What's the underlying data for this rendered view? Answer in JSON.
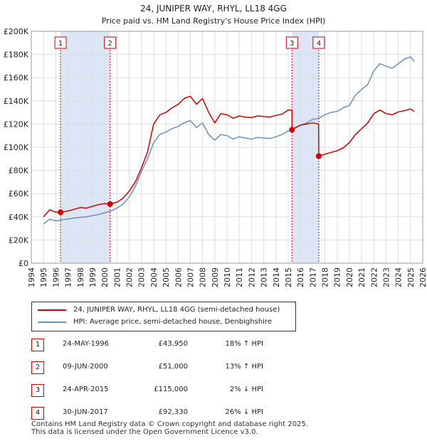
{
  "chart_data": {
    "type": "line",
    "title": "24, JUNIPER WAY, RHYL, LL18 4GG",
    "subtitle": "Price paid vs. HM Land Registry's House Price Index (HPI)",
    "xlim": [
      1994,
      2026
    ],
    "ylim": [
      0,
      200000
    ],
    "x_ticks": [
      "1994",
      "1995",
      "1996",
      "1997",
      "1998",
      "1999",
      "2000",
      "2001",
      "2002",
      "2003",
      "2004",
      "2005",
      "2006",
      "2007",
      "2008",
      "2009",
      "2010",
      "2011",
      "2012",
      "2013",
      "2014",
      "2015",
      "2016",
      "2017",
      "2018",
      "2019",
      "2020",
      "2021",
      "2022",
      "2023",
      "2024",
      "2025",
      "2026"
    ],
    "y_ticks": [
      {
        "value": 0,
        "label": "£0"
      },
      {
        "value": 20000,
        "label": "£20K"
      },
      {
        "value": 40000,
        "label": "£40K"
      },
      {
        "value": 60000,
        "label": "£60K"
      },
      {
        "value": 80000,
        "label": "£80K"
      },
      {
        "value": 100000,
        "label": "£100K"
      },
      {
        "value": 120000,
        "label": "£120K"
      },
      {
        "value": 140000,
        "label": "£140K"
      },
      {
        "value": 160000,
        "label": "£160K"
      },
      {
        "value": 180000,
        "label": "£180K"
      },
      {
        "value": 200000,
        "label": "£200K"
      }
    ],
    "shaded_ranges": [
      [
        1996.39,
        2000.44
      ],
      [
        2015.31,
        2017.5
      ]
    ],
    "series": [
      {
        "name": "24, JUNIPER WAY, RHYL, LL18 4GG (semi-detached house)",
        "color": "#cc0000",
        "x": [
          1995.0,
          1995.5,
          1996.0,
          1996.39,
          1997.0,
          1997.5,
          1998.0,
          1998.5,
          1999.0,
          1999.5,
          2000.0,
          2000.44,
          2001.0,
          2001.5,
          2002.0,
          2002.5,
          2003.0,
          2003.5,
          2004.0,
          2004.5,
          2005.0,
          2005.5,
          2006.0,
          2006.5,
          2007.0,
          2007.5,
          2008.0,
          2008.5,
          2009.0,
          2009.5,
          2010.0,
          2010.5,
          2011.0,
          2011.5,
          2012.0,
          2012.5,
          2013.0,
          2013.5,
          2014.0,
          2014.5,
          2015.0,
          2015.31,
          2015.31,
          2015.6,
          2016.0,
          2016.5,
          2017.0,
          2017.49,
          2017.5,
          2018.0,
          2018.5,
          2019.0,
          2019.5,
          2020.0,
          2020.5,
          2021.0,
          2021.5,
          2022.0,
          2022.5,
          2023.0,
          2023.5,
          2024.0,
          2024.5,
          2025.0,
          2025.3
        ],
        "y": [
          40000,
          46000,
          44000,
          43950,
          45000,
          46500,
          48000,
          47500,
          49000,
          50500,
          51500,
          51000,
          52500,
          56000,
          62000,
          70000,
          82000,
          96000,
          120000,
          128000,
          130000,
          134000,
          137000,
          142000,
          144000,
          137000,
          142000,
          130000,
          121000,
          129000,
          128000,
          125000,
          127000,
          126000,
          125500,
          127000,
          126500,
          126000,
          127500,
          128500,
          132000,
          132000,
          115000,
          117000,
          119000,
          120000,
          121000,
          120000,
          92330,
          94000,
          95500,
          97000,
          99500,
          104000,
          111000,
          116000,
          121000,
          129000,
          132000,
          129000,
          128000,
          130500,
          131500,
          133000,
          131000
        ]
      },
      {
        "name": "HPI: Average price, semi-detached house, Denbighshire",
        "color": "#6e8fbf",
        "x": [
          1995.0,
          1995.5,
          1996.0,
          1996.5,
          1997.0,
          1997.5,
          1998.0,
          1998.5,
          1999.0,
          1999.5,
          2000.0,
          2000.5,
          2001.0,
          2001.5,
          2002.0,
          2002.5,
          2003.0,
          2003.5,
          2004.0,
          2004.5,
          2005.0,
          2005.5,
          2006.0,
          2006.5,
          2007.0,
          2007.5,
          2008.0,
          2008.5,
          2009.0,
          2009.5,
          2010.0,
          2010.5,
          2011.0,
          2011.5,
          2012.0,
          2012.5,
          2013.0,
          2013.5,
          2014.0,
          2014.5,
          2015.0,
          2015.5,
          2016.0,
          2016.5,
          2017.0,
          2017.5,
          2018.0,
          2018.5,
          2019.0,
          2019.5,
          2020.0,
          2020.5,
          2021.0,
          2021.5,
          2022.0,
          2022.5,
          2023.0,
          2023.5,
          2024.0,
          2024.5,
          2025.0,
          2025.3
        ],
        "y": [
          34000,
          38000,
          36500,
          37500,
          38000,
          39000,
          39500,
          40000,
          41000,
          42000,
          43500,
          45000,
          47500,
          51000,
          57000,
          66000,
          79000,
          90000,
          104000,
          111000,
          113000,
          116000,
          118000,
          121000,
          123000,
          117000,
          121000,
          111000,
          106000,
          111000,
          110000,
          107000,
          109000,
          108000,
          107000,
          108500,
          108000,
          107500,
          109000,
          111000,
          114000,
          116000,
          119000,
          121000,
          124000,
          125000,
          128000,
          130000,
          131000,
          134000,
          136000,
          145000,
          150000,
          154000,
          166000,
          172000,
          170000,
          168000,
          172000,
          176000,
          178000,
          174000
        ]
      }
    ],
    "markers": [
      {
        "label": "1",
        "x": 1996.39,
        "y": 43950
      },
      {
        "label": "2",
        "x": 2000.44,
        "y": 51000
      },
      {
        "label": "3",
        "x": 2015.31,
        "y": 115000
      },
      {
        "label": "4",
        "x": 2017.5,
        "y": 92330
      }
    ],
    "legend": "below"
  },
  "transactions": [
    {
      "num": "1",
      "date": "24-MAY-1996",
      "price": "£43,950",
      "hpi": "18% ↑ HPI"
    },
    {
      "num": "2",
      "date": "09-JUN-2000",
      "price": "£51,000",
      "hpi": "13% ↑ HPI"
    },
    {
      "num": "3",
      "date": "24-APR-2015",
      "price": "£115,000",
      "hpi": "2% ↓ HPI"
    },
    {
      "num": "4",
      "date": "30-JUN-2017",
      "price": "£92,330",
      "hpi": "26% ↓ HPI"
    }
  ],
  "footer": {
    "line1": "Contains HM Land Registry data © Crown copyright and database right 2025.",
    "line2": "This data is licensed under the Open Government Licence v3.0."
  },
  "colors": {
    "price": "#cc0000",
    "hpi": "#6e8fbf",
    "shade": "#dde6f7",
    "grid": "#dddddd"
  }
}
